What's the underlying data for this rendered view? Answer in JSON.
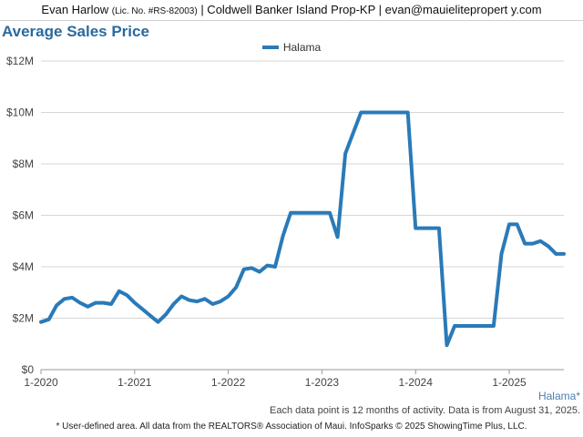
{
  "header": {
    "agent_name": "Evan Harlow",
    "license": "(Lic. No. #RS-82003)",
    "rest": "| Coldwell Banker Island Prop-KP | evan@mauielitepropert y.com"
  },
  "chart_data": {
    "type": "line",
    "title": "Average Sales Price",
    "legend": [
      "Halama"
    ],
    "legend_position": "top-center",
    "series_label": "Halama*",
    "color": "#2a7ab8",
    "grid": true,
    "ylim": [
      0,
      12000000
    ],
    "yticks": [
      0,
      2000000,
      4000000,
      6000000,
      8000000,
      10000000,
      12000000
    ],
    "ytick_labels": [
      "$0",
      "$2M",
      "$4M",
      "$6M",
      "$8M",
      "$10M",
      "$12M"
    ],
    "xlim": [
      "2020-01",
      "2025-08"
    ],
    "xticks": [
      "2020-01",
      "2021-01",
      "2022-01",
      "2023-01",
      "2024-01",
      "2025-01"
    ],
    "xtick_labels": [
      "1-2020",
      "1-2021",
      "1-2022",
      "1-2023",
      "1-2024",
      "1-2025"
    ],
    "series": [
      {
        "name": "Halama",
        "x": [
          "2020-01",
          "2020-02",
          "2020-03",
          "2020-04",
          "2020-05",
          "2020-06",
          "2020-07",
          "2020-08",
          "2020-09",
          "2020-10",
          "2020-11",
          "2020-12",
          "2021-01",
          "2021-02",
          "2021-03",
          "2021-04",
          "2021-05",
          "2021-06",
          "2021-07",
          "2021-08",
          "2021-09",
          "2021-10",
          "2021-11",
          "2021-12",
          "2022-01",
          "2022-02",
          "2022-03",
          "2022-04",
          "2022-05",
          "2022-06",
          "2022-07",
          "2022-08",
          "2022-09",
          "2022-10",
          "2022-11",
          "2022-12",
          "2023-01",
          "2023-02",
          "2023-03",
          "2023-04",
          "2023-05",
          "2023-06",
          "2023-07",
          "2023-08",
          "2023-09",
          "2023-10",
          "2023-11",
          "2023-12",
          "2024-01",
          "2024-02",
          "2024-03",
          "2024-04",
          "2024-05",
          "2024-06",
          "2024-07",
          "2024-08",
          "2024-09",
          "2024-10",
          "2024-11",
          "2024-12",
          "2025-01",
          "2025-02",
          "2025-03",
          "2025-04",
          "2025-05",
          "2025-06",
          "2025-07",
          "2025-08"
        ],
        "values": [
          1850000,
          1950000,
          2500000,
          2750000,
          2800000,
          2600000,
          2450000,
          2600000,
          2600000,
          2550000,
          3050000,
          2900000,
          2600000,
          2350000,
          2100000,
          1850000,
          2150000,
          2550000,
          2850000,
          2700000,
          2650000,
          2750000,
          2550000,
          2650000,
          2850000,
          3200000,
          3900000,
          3950000,
          3800000,
          4050000,
          4000000,
          5200000,
          6100000,
          6100000,
          6100000,
          6100000,
          6100000,
          6100000,
          5150000,
          8400000,
          9200000,
          10000000,
          10000000,
          10000000,
          10000000,
          10000000,
          10000000,
          10000000,
          5500000,
          5500000,
          5500000,
          5500000,
          950000,
          1700000,
          1700000,
          1700000,
          1700000,
          1700000,
          1700000,
          4500000,
          5650000,
          5650000,
          4900000,
          4900000,
          5000000,
          4800000,
          4500000,
          4500000
        ]
      }
    ]
  },
  "note": "Each data point is 12 months of activity. Data is from August 31, 2025.",
  "footer": "* User-defined area. All data from the REALTORS® Association of Maui. InfoSparks © 2025 ShowingTime Plus, LLC."
}
